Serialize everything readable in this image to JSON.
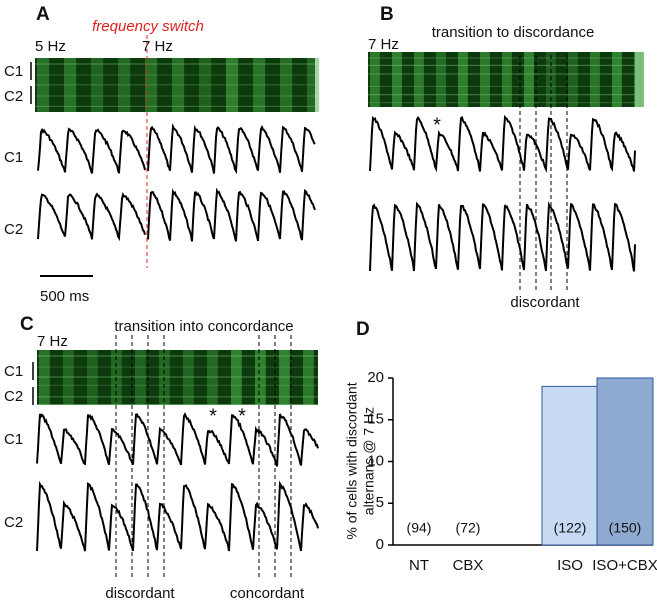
{
  "panels": {
    "A": {
      "letter": "A",
      "annotation": "frequency switch",
      "rate_before": "5 Hz",
      "rate_after": "7 Hz",
      "strip_labels": [
        "C1",
        "C2"
      ],
      "trace_labels": [
        "C1",
        "C2"
      ],
      "scale_bar": "500 ms"
    },
    "B": {
      "letter": "B",
      "rate": "7 Hz",
      "title": "transition to discordance",
      "marker": "*",
      "region_label": "discordant"
    },
    "C": {
      "letter": "C",
      "rate": "7 Hz",
      "title": "transition into concordance",
      "strip_labels": [
        "C1",
        "C2"
      ],
      "trace_labels": [
        "C1",
        "C2"
      ],
      "markers": [
        "*",
        "*"
      ],
      "region_labels": [
        "discordant",
        "concordant"
      ]
    }
  },
  "chart_data": {
    "type": "bar",
    "letter": "D",
    "ylabel": [
      "% of cells with discordant",
      "alternans @ 7 Hz"
    ],
    "categories": [
      "NT",
      "CBX",
      "ISO",
      "ISO+CBX"
    ],
    "values": [
      0,
      0,
      19,
      20
    ],
    "n_labels": [
      "(94)",
      "(72)",
      "(122)",
      "(150)"
    ],
    "colors": [
      "#c6daf2",
      "#c6daf2",
      "#c6daf2",
      "#8eaad0"
    ],
    "ylim": [
      0,
      20
    ],
    "yticks": [
      0,
      5,
      10,
      15,
      20
    ]
  }
}
